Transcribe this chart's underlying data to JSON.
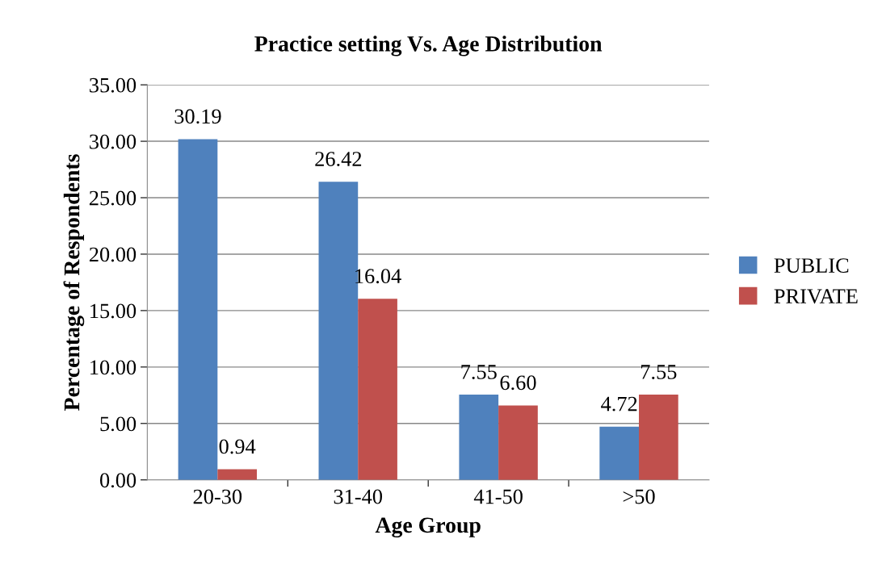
{
  "chart_data": {
    "type": "bar",
    "title": "Practice setting Vs. Age Distribution",
    "xlabel": "Age Group",
    "ylabel": "Percentage of Respondents",
    "categories": [
      "20-30",
      "31-40",
      "41-50",
      ">50"
    ],
    "series": [
      {
        "name": "PUBLIC",
        "color": "#4f81bd",
        "values": [
          30.19,
          26.42,
          7.55,
          4.72
        ],
        "value_labels": [
          "30.19",
          "26.42",
          "7.55",
          "4.72"
        ]
      },
      {
        "name": "PRIVATE",
        "color": "#c0504d",
        "values": [
          0.94,
          16.04,
          6.6,
          7.55
        ],
        "value_labels": [
          "0.94",
          "16.04",
          "6.60",
          "7.55"
        ]
      }
    ],
    "ylim": [
      0,
      35
    ],
    "yticks": [
      {
        "value": 0,
        "label": "0.00"
      },
      {
        "value": 5,
        "label": "5.00"
      },
      {
        "value": 10,
        "label": "10.00"
      },
      {
        "value": 15,
        "label": "15.00"
      },
      {
        "value": 20,
        "label": "20.00"
      },
      {
        "value": 25,
        "label": "25.00"
      },
      {
        "value": 30,
        "label": "30.00"
      },
      {
        "value": 35,
        "label": "35.00"
      }
    ],
    "grid": "y",
    "legend": "right"
  }
}
